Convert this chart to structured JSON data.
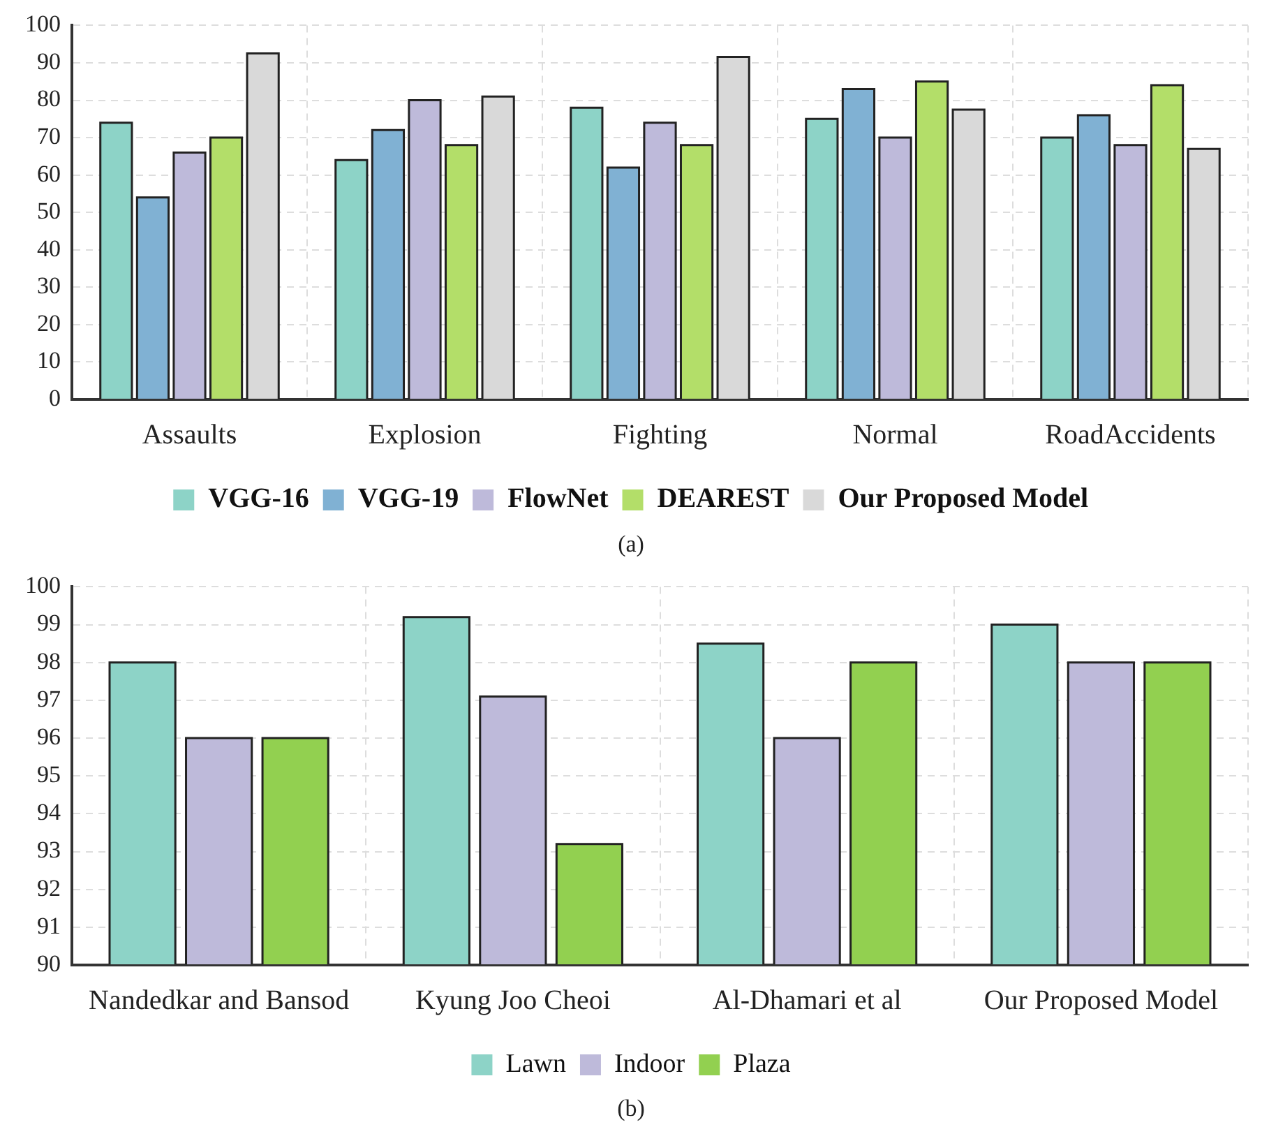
{
  "chart_data": [
    {
      "type": "bar",
      "categories": [
        "Assaults",
        "Explosion",
        "Fighting",
        "Normal",
        "RoadAccidents"
      ],
      "series": [
        {
          "name": "VGG-16",
          "color": "#8dd3c7",
          "values": [
            74,
            64,
            78,
            75,
            70
          ]
        },
        {
          "name": "VGG-19",
          "color": "#80b1d3",
          "values": [
            54,
            72,
            62,
            83,
            76
          ]
        },
        {
          "name": "FlowNet",
          "color": "#bebada",
          "values": [
            66,
            80,
            74,
            70,
            68
          ]
        },
        {
          "name": "DEAREST",
          "color": "#b3de69",
          "values": [
            70,
            68,
            68,
            85,
            84
          ]
        },
        {
          "name": "Our Proposed Model",
          "color": "#d9d9d9",
          "values": [
            92.5,
            81,
            91.6,
            77.5,
            67
          ]
        }
      ],
      "ylim": [
        0,
        100
      ],
      "yticks": [
        0,
        10,
        20,
        30,
        40,
        50,
        60,
        70,
        80,
        90,
        100
      ],
      "grid": true,
      "legend": "bottom",
      "annotations": [
        "(a)"
      ]
    },
    {
      "type": "bar",
      "categories": [
        "Nandedkar and Bansod",
        "Kyung Joo Cheoi",
        "Al-Dhamari et al",
        "Our Proposed Model"
      ],
      "series": [
        {
          "name": "Lawn",
          "color": "#8dd3c7",
          "values": [
            98,
            99.2,
            98.5,
            99
          ]
        },
        {
          "name": "Indoor",
          "color": "#bebada",
          "values": [
            96,
            97.1,
            96,
            98
          ]
        },
        {
          "name": "Plaza",
          "color": "#92d050",
          "values": [
            96,
            93.2,
            98,
            98
          ]
        }
      ],
      "ylim": [
        90,
        100
      ],
      "yticks": [
        90,
        91,
        92,
        93,
        94,
        95,
        96,
        97,
        98,
        99,
        100
      ],
      "grid": true,
      "legend": "bottom",
      "annotations": [
        "(b)"
      ]
    }
  ]
}
